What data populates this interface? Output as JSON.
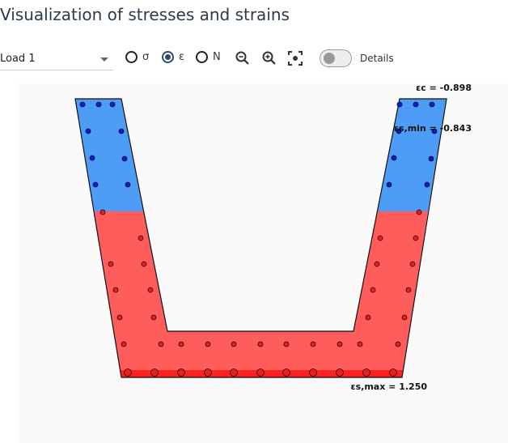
{
  "title": "Visualization of stresses and strains",
  "toolbar": {
    "load_select": "Load 1",
    "radios": [
      {
        "label": "σ",
        "checked": false
      },
      {
        "label": "ε",
        "checked": true
      },
      {
        "label": "N",
        "checked": false
      }
    ],
    "icons": [
      "zoom-out-icon",
      "zoom-in-icon",
      "fit-view-icon"
    ],
    "details_label": "Details",
    "details_on": false
  },
  "plot": {
    "labels": {
      "eps_c": "εc = -0.898",
      "eps_s_min": "εs,min = -0.843",
      "eps_s_max": "εs,max = 1.250"
    },
    "colors": {
      "compression": "#4d9df7",
      "tension": "#ff5c5c",
      "tension_max": "#ff2020",
      "bar_compression": "#0a1ad8",
      "bar_tension": "#ee1c1c"
    }
  }
}
